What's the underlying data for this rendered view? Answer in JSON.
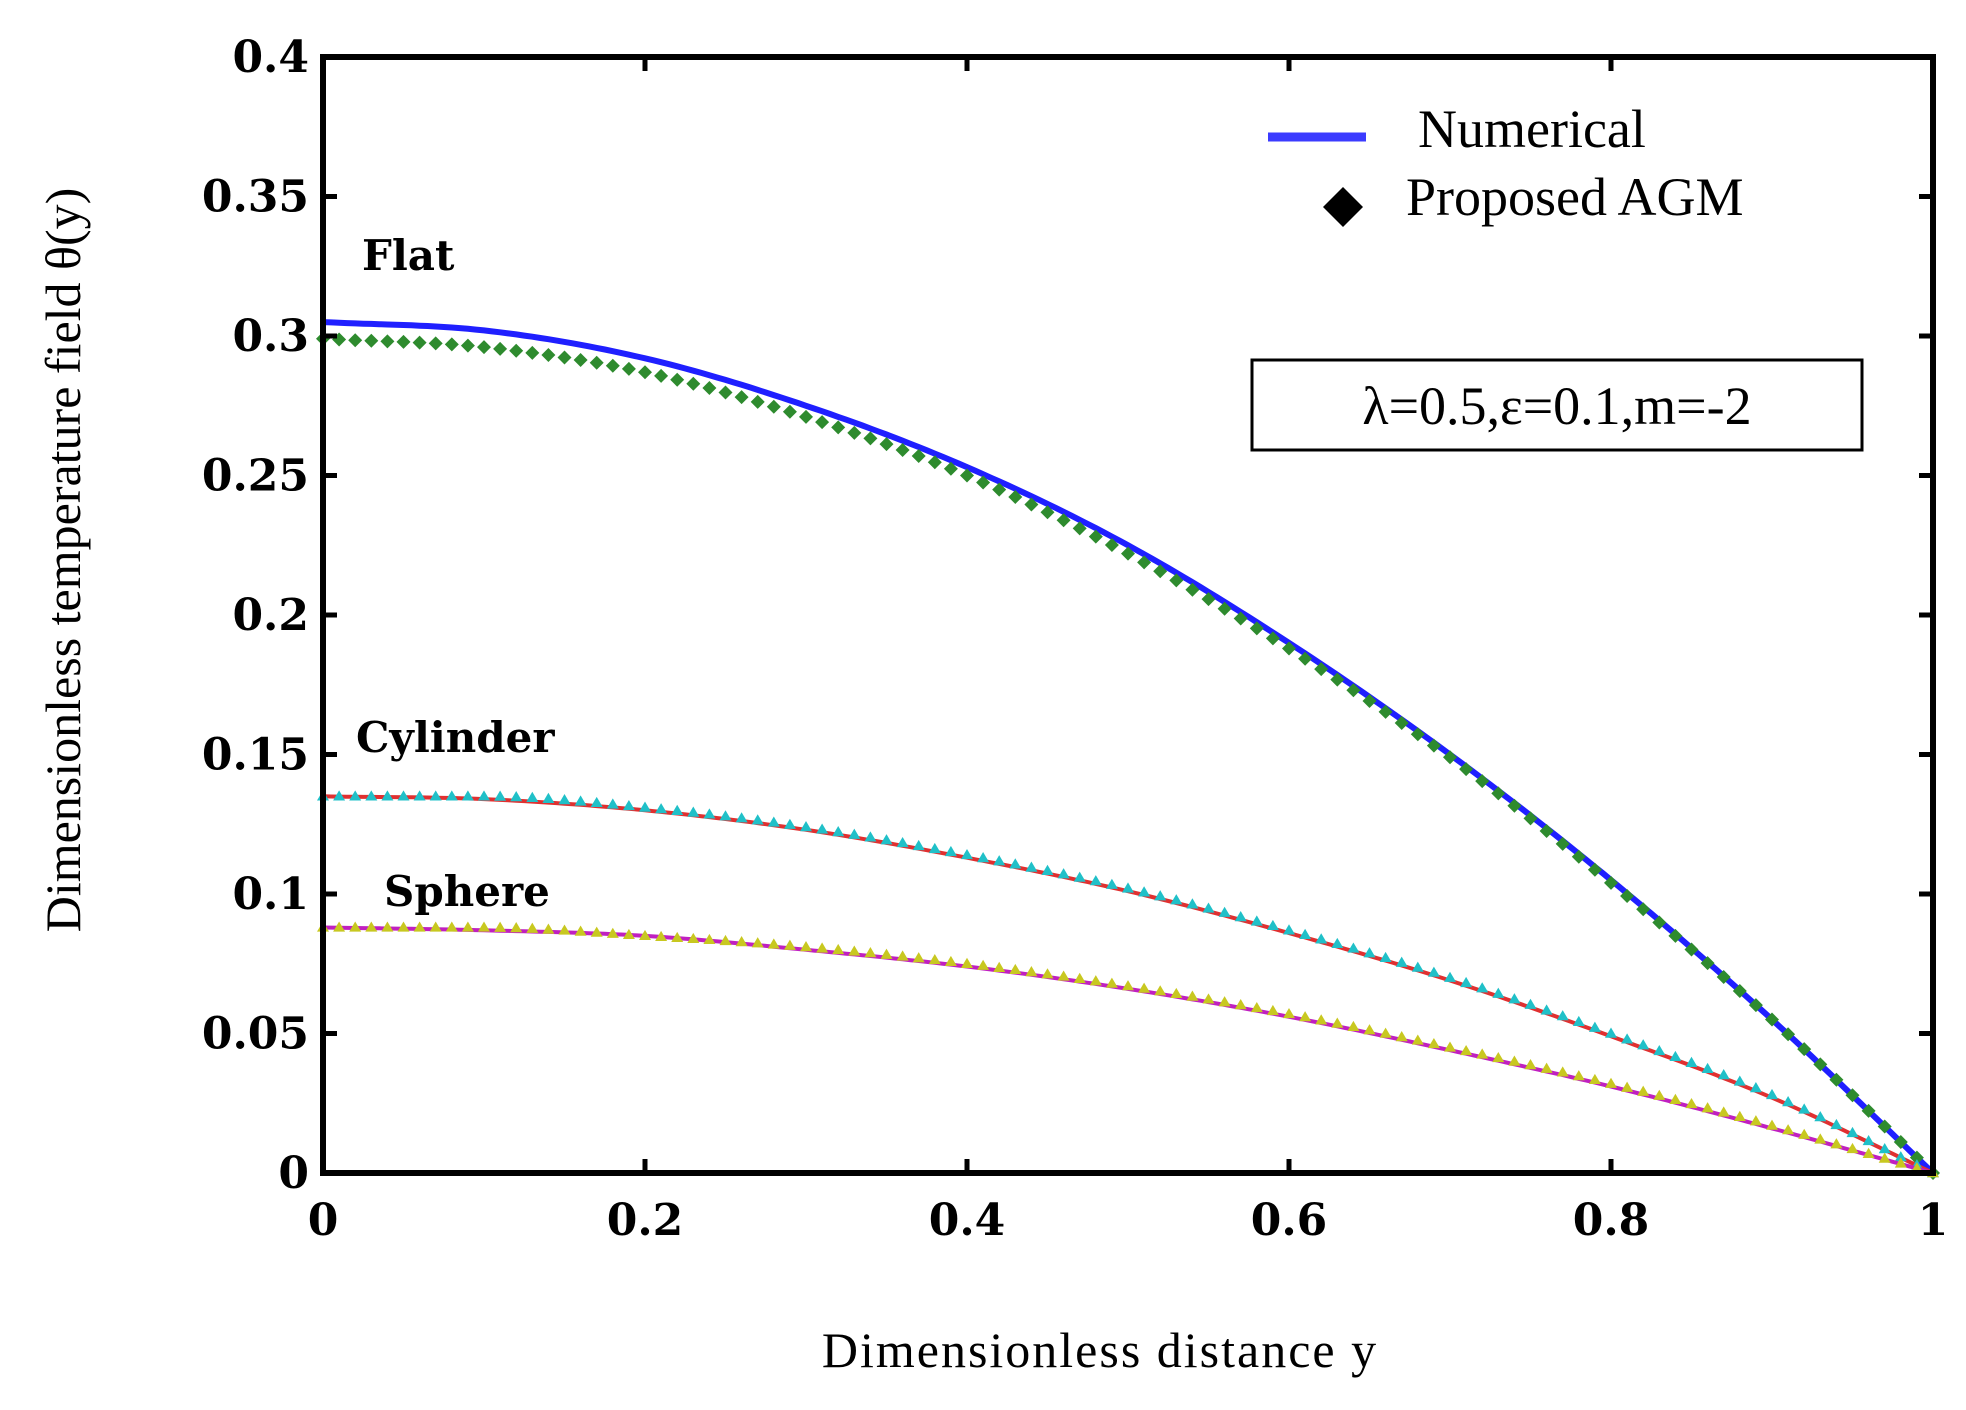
{
  "chart_data": {
    "type": "line",
    "title": "",
    "xlabel": "Dimensionless distance  y",
    "ylabel": "Dimensionless temperature field θ(y)",
    "xlim": [
      0,
      1
    ],
    "ylim": [
      0,
      0.4
    ],
    "xticks": [
      0,
      0.2,
      0.4,
      0.6,
      0.8,
      1
    ],
    "xtick_labels": [
      "0",
      "0.2",
      "0.4",
      "0.6",
      "0.8",
      "1"
    ],
    "yticks": [
      0,
      0.05,
      0.1,
      0.15,
      0.2,
      0.25,
      0.3,
      0.35,
      0.4
    ],
    "ytick_labels": [
      "0",
      "0.05",
      "0.1",
      "0.15",
      "0.2",
      "0.25",
      "0.3",
      "0.35",
      "0.4"
    ],
    "grid": false,
    "legend": {
      "position": "top-right",
      "entries": [
        {
          "label": "Numerical",
          "style": "line",
          "color": "#3b3bff"
        },
        {
          "label": "Proposed AGM",
          "style": "diamond",
          "color": "#000000"
        }
      ]
    },
    "annotation": "λ=0.5,ε=0.1,m=-2",
    "curve_labels": [
      {
        "text": "Flat",
        "series": "Flat"
      },
      {
        "text": "Cylinder",
        "series": "Cylinder"
      },
      {
        "text": "Sphere",
        "series": "Sphere"
      }
    ],
    "series": [
      {
        "name": "Flat",
        "method": "Numerical",
        "style": "line",
        "color": "#1f1fff",
        "x": [
          0,
          0.1,
          0.2,
          0.3,
          0.4,
          0.5,
          0.6,
          0.7,
          0.8,
          0.9,
          1.0
        ],
        "y": [
          0.305,
          0.302,
          0.292,
          0.275,
          0.253,
          0.225,
          0.19,
          0.15,
          0.105,
          0.055,
          0.0
        ]
      },
      {
        "name": "Flat",
        "method": "Proposed AGM",
        "style": "diamond",
        "color": "#2e8b2e",
        "x": [
          0,
          0.1,
          0.2,
          0.3,
          0.4,
          0.5,
          0.6,
          0.7,
          0.8,
          0.9,
          1.0
        ],
        "y": [
          0.299,
          0.296,
          0.287,
          0.271,
          0.25,
          0.222,
          0.188,
          0.149,
          0.104,
          0.055,
          0.0
        ]
      },
      {
        "name": "Cylinder",
        "method": "Numerical",
        "style": "line",
        "color": "#e03030",
        "x": [
          0,
          0.1,
          0.2,
          0.3,
          0.4,
          0.5,
          0.6,
          0.7,
          0.8,
          0.9,
          1.0
        ],
        "y": [
          0.135,
          0.134,
          0.13,
          0.123,
          0.113,
          0.101,
          0.086,
          0.069,
          0.049,
          0.027,
          0.0
        ]
      },
      {
        "name": "Cylinder",
        "method": "Proposed AGM",
        "style": "marker",
        "color": "#20c0c8",
        "x": [
          0,
          0.1,
          0.2,
          0.3,
          0.4,
          0.5,
          0.6,
          0.7,
          0.8,
          0.9,
          1.0
        ],
        "y": [
          0.135,
          0.135,
          0.131,
          0.124,
          0.114,
          0.102,
          0.087,
          0.07,
          0.05,
          0.028,
          0.0
        ]
      },
      {
        "name": "Sphere",
        "method": "Numerical",
        "style": "line",
        "color": "#c020c0",
        "x": [
          0,
          0.1,
          0.2,
          0.3,
          0.4,
          0.5,
          0.6,
          0.7,
          0.8,
          0.9,
          1.0
        ],
        "y": [
          0.088,
          0.087,
          0.085,
          0.08,
          0.074,
          0.066,
          0.056,
          0.044,
          0.031,
          0.016,
          0.0
        ]
      },
      {
        "name": "Sphere",
        "method": "Proposed AGM",
        "style": "marker",
        "color": "#c8c820",
        "x": [
          0,
          0.1,
          0.2,
          0.3,
          0.4,
          0.5,
          0.6,
          0.7,
          0.8,
          0.9,
          1.0
        ],
        "y": [
          0.088,
          0.088,
          0.085,
          0.081,
          0.075,
          0.067,
          0.057,
          0.045,
          0.032,
          0.017,
          0.0
        ]
      }
    ]
  }
}
